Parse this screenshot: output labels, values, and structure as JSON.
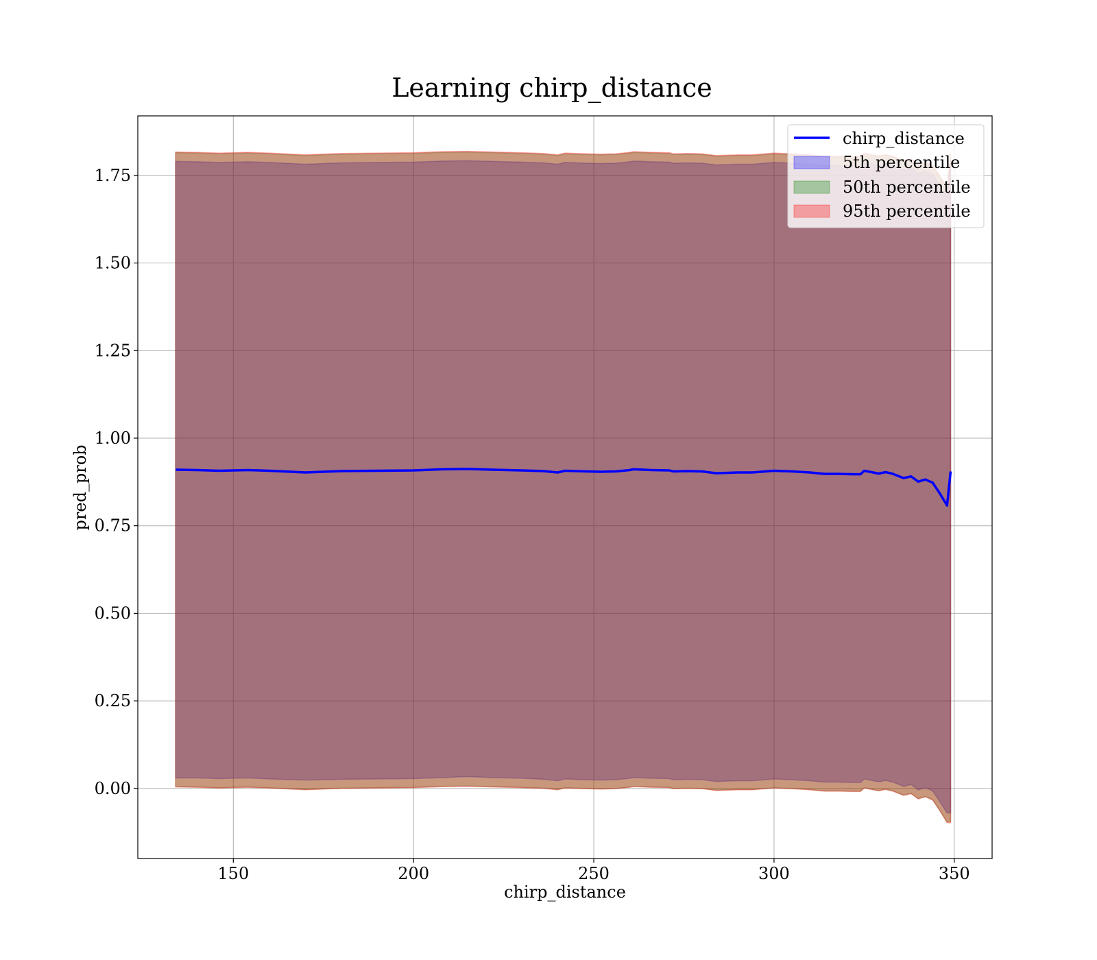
{
  "chart_data": {
    "type": "area",
    "title": "Learning chirp_distance",
    "xlabel": "chirp_distance",
    "ylabel": "pred_prob",
    "xlim": [
      123.5,
      360.5
    ],
    "ylim": [
      -0.2,
      1.92
    ],
    "xticks": [
      150,
      200,
      250,
      300,
      350
    ],
    "xtick_labels": [
      "150",
      "200",
      "250",
      "300",
      "350"
    ],
    "yticks": [
      0.0,
      0.25,
      0.5,
      0.75,
      1.0,
      1.25,
      1.5,
      1.75
    ],
    "ytick_labels": [
      "0.00",
      "0.25",
      "0.50",
      "0.75",
      "1.00",
      "1.25",
      "1.50",
      "1.75"
    ],
    "grid": true,
    "legend_position": "top-right",
    "x": [
      134,
      140,
      146,
      154,
      160,
      170,
      180,
      190,
      200,
      208,
      215,
      222,
      230,
      236,
      240,
      242,
      248,
      252,
      256,
      260,
      261,
      266,
      271,
      272,
      276,
      280,
      284,
      290,
      294,
      300,
      305,
      310,
      314,
      318,
      322,
      324,
      325,
      327,
      329,
      331,
      333,
      335,
      336,
      338,
      340,
      342,
      344,
      346,
      348,
      349
    ],
    "line_values": [
      0.91,
      0.909,
      0.907,
      0.909,
      0.907,
      0.902,
      0.906,
      0.907,
      0.908,
      0.911,
      0.912,
      0.91,
      0.908,
      0.906,
      0.902,
      0.907,
      0.905,
      0.904,
      0.905,
      0.909,
      0.911,
      0.909,
      0.908,
      0.905,
      0.906,
      0.905,
      0.9,
      0.902,
      0.902,
      0.907,
      0.905,
      0.902,
      0.898,
      0.898,
      0.897,
      0.897,
      0.907,
      0.903,
      0.899,
      0.903,
      0.898,
      0.89,
      0.886,
      0.891,
      0.876,
      0.882,
      0.873,
      0.842,
      0.808,
      0.905
    ],
    "series": [
      {
        "name": "chirp_distance",
        "type": "line",
        "color": "#0000ff"
      },
      {
        "name": "5th percentile",
        "type": "band",
        "color": "#0000ff",
        "lower": [
          0.03,
          0.03,
          0.028,
          0.03,
          0.027,
          0.024,
          0.026,
          0.027,
          0.028,
          0.031,
          0.034,
          0.031,
          0.029,
          0.026,
          0.022,
          0.027,
          0.025,
          0.024,
          0.025,
          0.029,
          0.031,
          0.029,
          0.028,
          0.025,
          0.026,
          0.025,
          0.02,
          0.022,
          0.022,
          0.027,
          0.025,
          0.022,
          0.018,
          0.018,
          0.017,
          0.017,
          0.027,
          0.023,
          0.019,
          0.023,
          0.018,
          0.01,
          0.006,
          0.011,
          -0.004,
          0.002,
          -0.007,
          -0.038,
          -0.07,
          -0.07
        ],
        "upper": [
          1.79,
          1.789,
          1.787,
          1.789,
          1.787,
          1.782,
          1.786,
          1.787,
          1.788,
          1.791,
          1.792,
          1.79,
          1.788,
          1.786,
          1.782,
          1.787,
          1.785,
          1.784,
          1.785,
          1.789,
          1.791,
          1.789,
          1.788,
          1.785,
          1.786,
          1.785,
          1.78,
          1.782,
          1.782,
          1.787,
          1.785,
          1.782,
          1.778,
          1.778,
          1.777,
          1.777,
          1.787,
          1.783,
          1.779,
          1.783,
          1.778,
          1.77,
          1.766,
          1.771,
          1.756,
          1.762,
          1.753,
          1.722,
          1.688,
          1.785
        ]
      },
      {
        "name": "50th percentile",
        "type": "band",
        "color": "#008000",
        "lower": [
          0.005,
          0.004,
          0.002,
          0.004,
          0.002,
          -0.003,
          0.001,
          0.002,
          0.003,
          0.006,
          0.007,
          0.005,
          0.003,
          0.001,
          -0.003,
          0.002,
          0.0,
          -0.001,
          0.0,
          0.004,
          0.006,
          0.004,
          0.003,
          0.0,
          0.001,
          0.0,
          -0.005,
          -0.003,
          -0.003,
          0.002,
          0.0,
          -0.003,
          -0.007,
          -0.007,
          -0.008,
          -0.008,
          0.002,
          -0.002,
          -0.006,
          -0.002,
          -0.007,
          -0.015,
          -0.019,
          -0.014,
          -0.029,
          -0.023,
          -0.032,
          -0.063,
          -0.095,
          -0.095
        ],
        "upper": [
          1.815,
          1.814,
          1.812,
          1.814,
          1.812,
          1.807,
          1.811,
          1.812,
          1.813,
          1.816,
          1.817,
          1.815,
          1.813,
          1.811,
          1.807,
          1.812,
          1.81,
          1.809,
          1.81,
          1.814,
          1.816,
          1.814,
          1.813,
          1.81,
          1.811,
          1.81,
          1.805,
          1.807,
          1.807,
          1.812,
          1.81,
          1.807,
          1.803,
          1.803,
          1.802,
          1.802,
          1.812,
          1.808,
          1.804,
          1.808,
          1.803,
          1.795,
          1.791,
          1.796,
          1.781,
          1.787,
          1.778,
          1.747,
          1.713,
          1.81
        ]
      },
      {
        "name": "95th percentile",
        "type": "band",
        "color": "#ff0000",
        "lower": [
          0.004,
          0.003,
          0.001,
          0.003,
          0.001,
          -0.004,
          0.0,
          0.001,
          0.002,
          0.005,
          0.006,
          0.004,
          0.002,
          0.0,
          -0.004,
          0.001,
          -0.001,
          -0.002,
          -0.001,
          0.003,
          0.005,
          0.003,
          0.002,
          -0.001,
          0.0,
          -0.001,
          -0.006,
          -0.004,
          -0.004,
          0.001,
          -0.001,
          -0.004,
          -0.008,
          -0.008,
          -0.009,
          -0.009,
          0.001,
          -0.003,
          -0.007,
          -0.003,
          -0.008,
          -0.016,
          -0.02,
          -0.015,
          -0.03,
          -0.024,
          -0.033,
          -0.064,
          -0.098,
          -0.098
        ],
        "upper": [
          1.817,
          1.816,
          1.814,
          1.816,
          1.814,
          1.809,
          1.813,
          1.814,
          1.815,
          1.818,
          1.819,
          1.817,
          1.815,
          1.813,
          1.809,
          1.814,
          1.812,
          1.811,
          1.812,
          1.816,
          1.818,
          1.816,
          1.815,
          1.812,
          1.813,
          1.812,
          1.807,
          1.809,
          1.809,
          1.814,
          1.812,
          1.809,
          1.805,
          1.805,
          1.804,
          1.804,
          1.814,
          1.81,
          1.806,
          1.81,
          1.805,
          1.797,
          1.793,
          1.798,
          1.783,
          1.789,
          1.78,
          1.749,
          1.715,
          1.812
        ]
      }
    ],
    "legend": [
      "chirp_distance",
      "5th percentile",
      "50th percentile",
      "95th percentile"
    ]
  }
}
